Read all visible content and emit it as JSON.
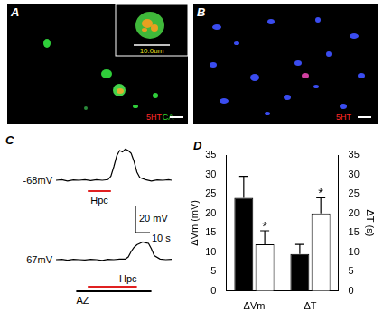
{
  "figure": {
    "A": {
      "letter": "A",
      "labels": [
        {
          "text": "5HT",
          "color": "#ff2a2a"
        },
        {
          "text": "CA",
          "color": "#33dd33"
        }
      ],
      "inset_scale_label": "10.0um"
    },
    "B": {
      "letter": "B",
      "labels": [
        {
          "text": "5HT",
          "color": "#ff2a2a"
        }
      ]
    },
    "C": {
      "letter": "C",
      "traces": [
        {
          "label": "-68mV",
          "t": [
            0,
            4,
            8,
            12,
            16,
            20,
            24,
            28,
            32,
            36,
            38,
            40,
            42,
            44,
            46,
            48,
            50,
            52,
            54,
            56,
            58,
            62,
            66,
            70,
            74,
            78,
            80
          ],
          "v": [
            0,
            0.5,
            -0.5,
            0.3,
            0,
            0.5,
            -0.3,
            0.4,
            0,
            0.5,
            3,
            10,
            18,
            22,
            21,
            23,
            22,
            20,
            14,
            6,
            2,
            0.5,
            -0.5,
            0.3,
            0,
            0.4,
            0
          ],
          "bars": [
            {
              "label": "Hpc",
              "start": 22,
              "end": 38,
              "color": "#e02020"
            }
          ]
        },
        {
          "label": "-67mV",
          "t": [
            0,
            4,
            8,
            12,
            16,
            20,
            24,
            28,
            32,
            36,
            40,
            44,
            48,
            50,
            52,
            54,
            56,
            58,
            60,
            62,
            64,
            66,
            68,
            72,
            76,
            80
          ],
          "v": [
            0,
            0.3,
            -0.4,
            0.2,
            0,
            -0.3,
            0.3,
            0,
            -0.5,
            0.2,
            0,
            0.4,
            0.5,
            2,
            6,
            9,
            11,
            12,
            13,
            12.5,
            12,
            8,
            3,
            0.5,
            0,
            0.3
          ],
          "bars": [
            {
              "label": "Hpc",
              "start": 22,
              "end": 56,
              "color": "#e02020"
            },
            {
              "label": "AZ",
              "start": 14,
              "end": 66,
              "color": "#000000"
            }
          ]
        }
      ],
      "scale_bars": {
        "voltage": {
          "value": 20,
          "label": "20 mV"
        },
        "time": {
          "value": 10,
          "label": "10 s"
        }
      }
    }
  },
  "chart_data": {
    "panel": "D",
    "type": "bar",
    "categories": [
      "ΔVm",
      "ΔT"
    ],
    "ylabel": "ΔVm (mV)",
    "y2label": "ΔT (s)",
    "ylim": [
      0,
      35
    ],
    "yticks": [
      0,
      5,
      10,
      15,
      20,
      25,
      30,
      35
    ],
    "y2lim": [
      0,
      35
    ],
    "y2ticks": [
      0,
      5,
      10,
      15,
      20,
      25,
      30,
      35
    ],
    "grid": false,
    "series": [
      {
        "color": "#000000",
        "values": [
          24,
          null
        ],
        "errors": [
          5.5,
          null
        ]
      },
      {
        "color": "#ffffff",
        "values": [
          12,
          null
        ],
        "errors": [
          3.5,
          null
        ],
        "significance": [
          "*",
          null
        ]
      },
      {
        "color": "#000000",
        "values": [
          null,
          9.5
        ],
        "errors": [
          null,
          2.5
        ],
        "axis": "y2"
      },
      {
        "color": "#ffffff",
        "values": [
          null,
          20
        ],
        "errors": [
          null,
          4
        ],
        "axis": "y2",
        "significance": [
          null,
          "*"
        ]
      }
    ]
  }
}
